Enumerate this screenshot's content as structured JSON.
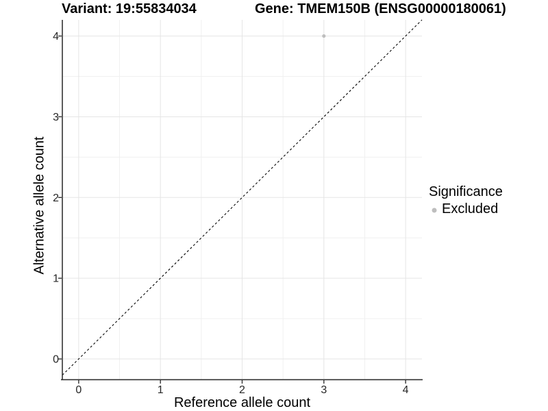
{
  "titles": {
    "variant": "Variant: 19:55834034",
    "gene": "Gene: TMEM150B (ENSG00000180061)"
  },
  "axes": {
    "x": {
      "label": "Reference allele count",
      "ticks": [
        "0",
        "1",
        "2",
        "3",
        "4"
      ]
    },
    "y": {
      "label": "Alternative allele count",
      "ticks": [
        "0",
        "1",
        "2",
        "3",
        "4"
      ]
    }
  },
  "legend": {
    "title": "Significance",
    "items": [
      {
        "label": "Excluded",
        "color": "#bebebe"
      }
    ]
  },
  "colors": {
    "background": "#ffffff",
    "grid_major": "#e5e5e5",
    "grid_minor": "#f0f0f0",
    "axis_line": "#333333",
    "tick_label": "#262626",
    "reference_line": "#000000",
    "point": "#bebebe"
  },
  "chart_data": {
    "type": "scatter",
    "title": "Variant: 19:55834034 | Gene: TMEM150B (ENSG00000180061)",
    "xlabel": "Reference allele count",
    "ylabel": "Alternative allele count",
    "xlim": [
      -0.2,
      4.2
    ],
    "ylim": [
      -0.25,
      4.2
    ],
    "x_ticks": [
      0,
      1,
      2,
      3,
      4
    ],
    "y_ticks": [
      0,
      1,
      2,
      3,
      4
    ],
    "grid": true,
    "legend_position": "right",
    "reference_line": {
      "slope": 1,
      "intercept": 0,
      "style": "dashed",
      "color": "#000000"
    },
    "series": [
      {
        "name": "Excluded",
        "color": "#bebebe",
        "points": [
          {
            "x": 3,
            "y": 4
          }
        ]
      }
    ]
  }
}
